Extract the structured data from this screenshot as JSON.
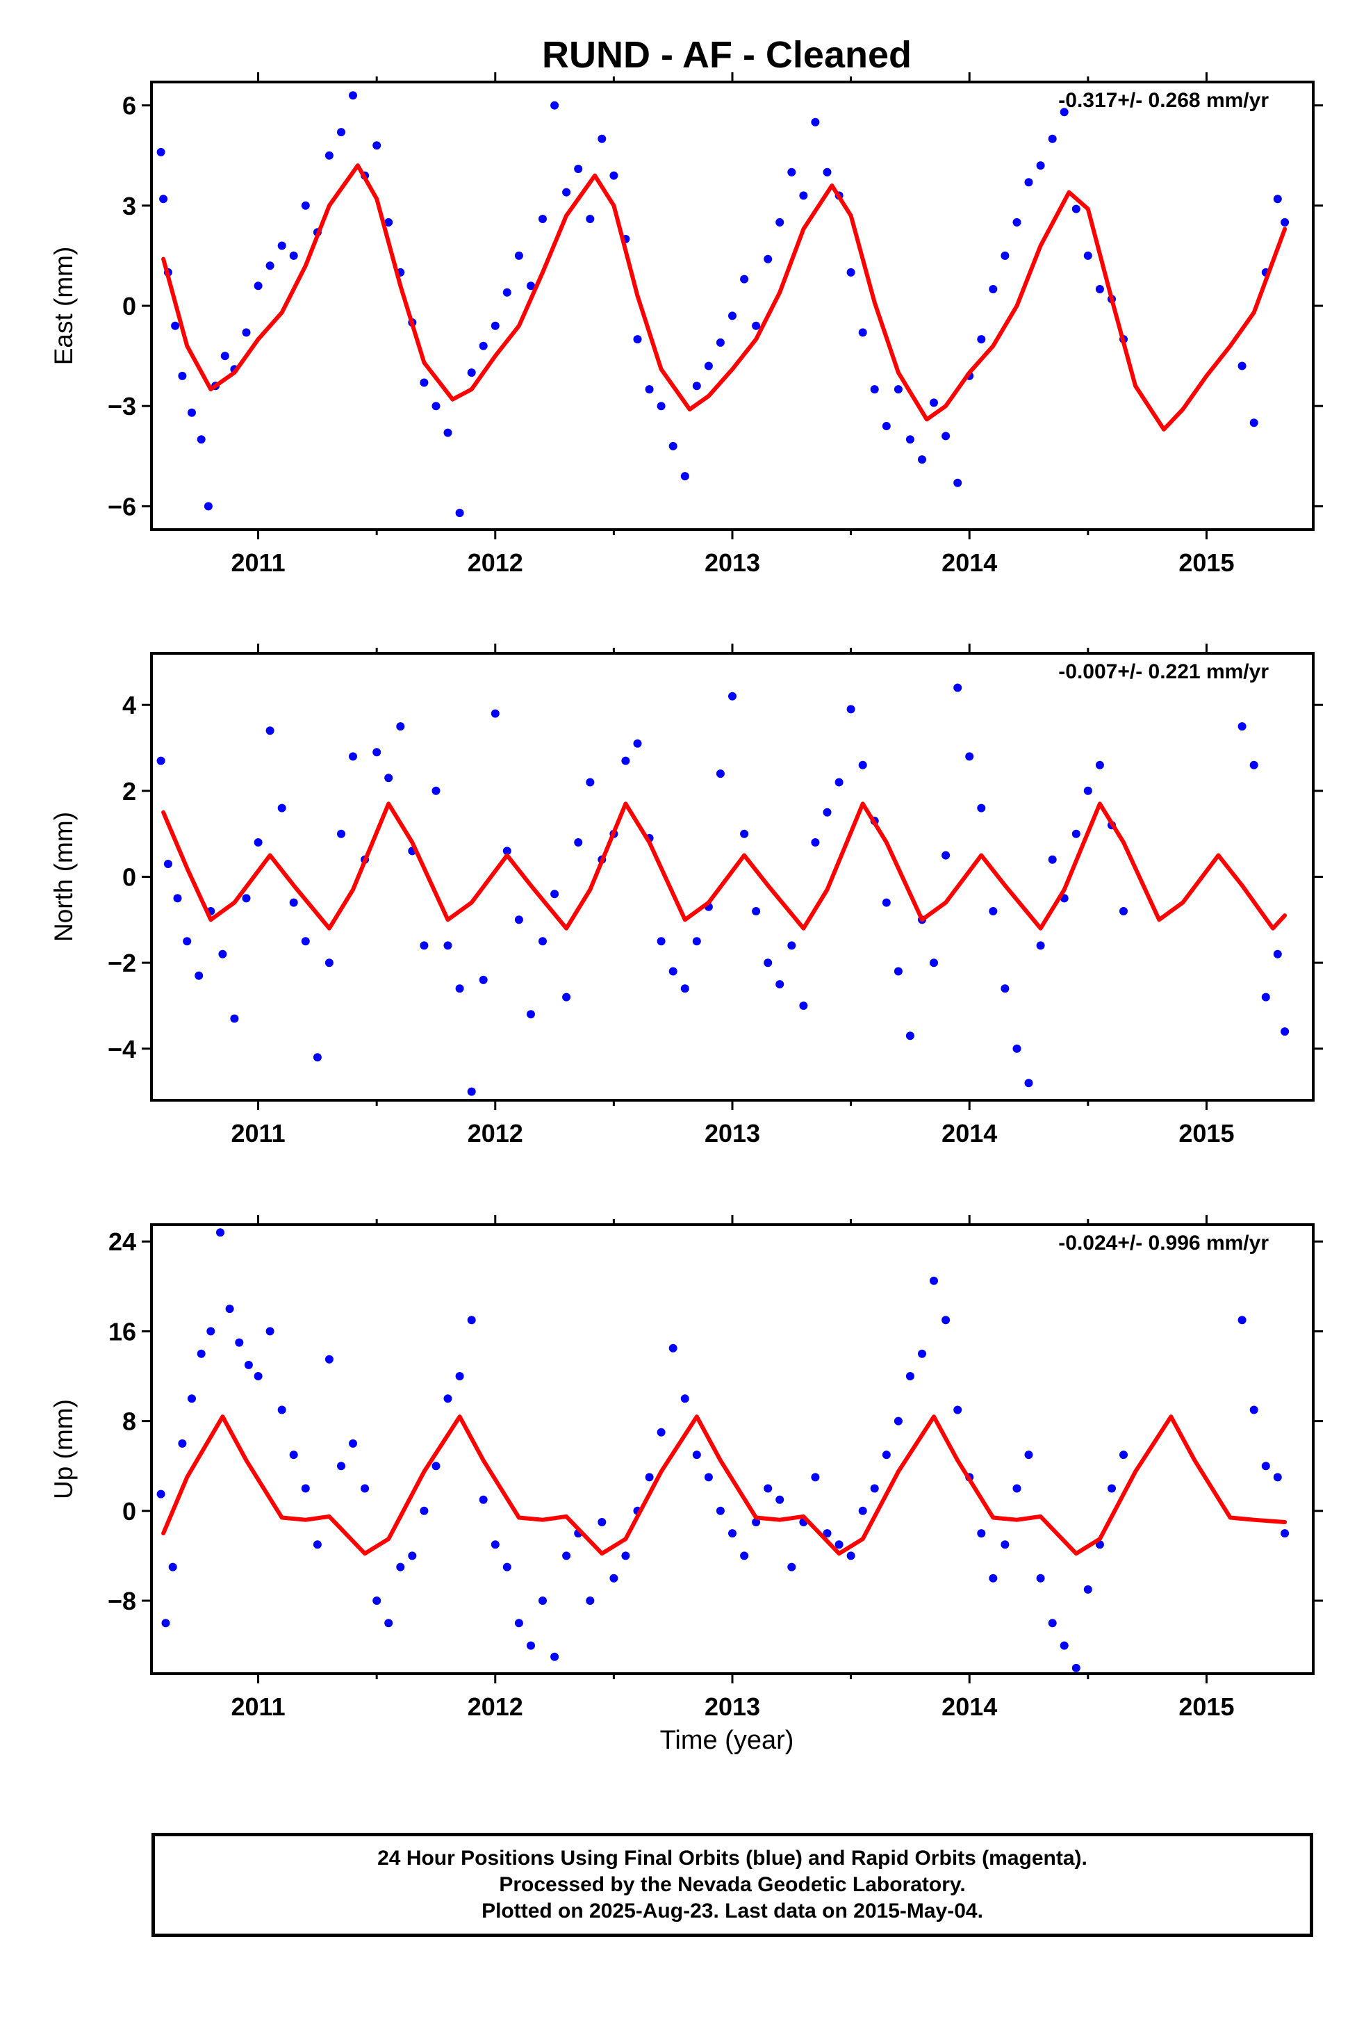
{
  "title": "RUND  - AF - Cleaned",
  "xlabel": "Time (year)",
  "colors": {
    "points": "#0000ff",
    "fit": "#ff0000",
    "frame": "#000000"
  },
  "footer": {
    "line1": "24 Hour Positions Using Final Orbits (blue) and Rapid Orbits (magenta).",
    "line2": "Processed by the Nevada Geodetic Laboratory.",
    "line3": "Plotted on 2025-Aug-23. Last data on 2015-May-04."
  },
  "chart_data": [
    {
      "type": "scatter",
      "ylabel": "East (mm)",
      "rate": "-0.317+/- 0.268 mm/yr",
      "xlim": [
        2010.55,
        2015.45
      ],
      "ylim": [
        -6.7,
        6.7
      ],
      "xticks": [
        2011,
        2012,
        2013,
        2014,
        2015
      ],
      "yticks": [
        -6,
        -3,
        0,
        3,
        6
      ],
      "fit_series": {
        "name": "fit",
        "x": [
          2010.6,
          2010.7,
          2010.8,
          2010.9,
          2011.0,
          2011.1,
          2011.2,
          2011.3,
          2011.42,
          2011.5,
          2011.6,
          2011.7,
          2011.82,
          2011.9,
          2012.0,
          2012.1,
          2012.2,
          2012.3,
          2012.42,
          2012.5,
          2012.6,
          2012.7,
          2012.82,
          2012.9,
          2013.0,
          2013.1,
          2013.2,
          2013.3,
          2013.42,
          2013.5,
          2013.6,
          2013.7,
          2013.82,
          2013.9,
          2014.0,
          2014.1,
          2014.2,
          2014.3,
          2014.42,
          2014.5,
          2014.6,
          2014.7,
          2014.82,
          2014.9,
          2015.0,
          2015.1,
          2015.2,
          2015.33
        ],
        "y": [
          1.4,
          -1.2,
          -2.5,
          -2.0,
          -1.0,
          -0.2,
          1.2,
          3.0,
          4.2,
          3.2,
          0.6,
          -1.7,
          -2.8,
          -2.5,
          -1.5,
          -0.6,
          1.0,
          2.7,
          3.9,
          3.0,
          0.3,
          -1.9,
          -3.1,
          -2.7,
          -1.9,
          -1.0,
          0.4,
          2.3,
          3.6,
          2.7,
          0.1,
          -2.0,
          -3.4,
          -3.0,
          -2.0,
          -1.2,
          0.0,
          1.8,
          3.4,
          2.9,
          0.2,
          -2.4,
          -3.7,
          -3.1,
          -2.1,
          -1.2,
          -0.2,
          2.3
        ]
      },
      "scatter_series": {
        "name": "daily",
        "x": [
          2010.59,
          2010.6,
          2010.62,
          2010.65,
          2010.68,
          2010.72,
          2010.76,
          2010.79,
          2010.82,
          2010.86,
          2010.9,
          2010.95,
          2011.0,
          2011.05,
          2011.1,
          2011.15,
          2011.2,
          2011.25,
          2011.3,
          2011.35,
          2011.4,
          2011.45,
          2011.5,
          2011.55,
          2011.6,
          2011.65,
          2011.7,
          2011.75,
          2011.8,
          2011.85,
          2011.9,
          2011.95,
          2012.0,
          2012.05,
          2012.1,
          2012.15,
          2012.2,
          2012.25,
          2012.3,
          2012.35,
          2012.4,
          2012.45,
          2012.5,
          2012.55,
          2012.6,
          2012.65,
          2012.7,
          2012.75,
          2012.8,
          2012.85,
          2012.9,
          2012.95,
          2013.0,
          2013.05,
          2013.1,
          2013.15,
          2013.2,
          2013.25,
          2013.3,
          2013.35,
          2013.4,
          2013.45,
          2013.5,
          2013.55,
          2013.6,
          2013.65,
          2013.7,
          2013.75,
          2013.8,
          2013.85,
          2013.9,
          2013.95,
          2014.0,
          2014.05,
          2014.1,
          2014.15,
          2014.2,
          2014.25,
          2014.3,
          2014.35,
          2014.4,
          2014.45,
          2014.5,
          2014.55,
          2014.6,
          2014.65,
          2015.15,
          2015.2,
          2015.25,
          2015.3,
          2015.33
        ],
        "y": [
          4.6,
          3.2,
          1.0,
          -0.6,
          -2.1,
          -3.2,
          -4.0,
          -6.0,
          -2.4,
          -1.5,
          -1.9,
          -0.8,
          0.6,
          1.2,
          1.8,
          1.5,
          3.0,
          2.2,
          4.5,
          5.2,
          6.3,
          3.9,
          4.8,
          2.5,
          1.0,
          -0.5,
          -2.3,
          -3.0,
          -3.8,
          -6.2,
          -2.0,
          -1.2,
          -0.6,
          0.4,
          1.5,
          0.6,
          2.6,
          6.0,
          3.4,
          4.1,
          2.6,
          5.0,
          3.9,
          2.0,
          -1.0,
          -2.5,
          -3.0,
          -4.2,
          -5.1,
          -2.4,
          -1.8,
          -1.1,
          -0.3,
          0.8,
          -0.6,
          1.4,
          2.5,
          4.0,
          3.3,
          5.5,
          4.0,
          3.3,
          1.0,
          -0.8,
          -2.5,
          -3.6,
          -2.5,
          -4.0,
          -4.6,
          -2.9,
          -3.9,
          -5.3,
          -2.1,
          -1.0,
          0.5,
          1.5,
          2.5,
          3.7,
          4.2,
          5.0,
          5.8,
          2.9,
          1.5,
          0.5,
          0.2,
          -1.0,
          -1.8,
          -3.5,
          1.0,
          3.2,
          2.5
        ]
      }
    },
    {
      "type": "scatter",
      "ylabel": "North (mm)",
      "rate": "-0.007+/- 0.221 mm/yr",
      "xlim": [
        2010.55,
        2015.45
      ],
      "ylim": [
        -5.2,
        5.2
      ],
      "xticks": [
        2011,
        2012,
        2013,
        2014,
        2015
      ],
      "yticks": [
        -4,
        -2,
        0,
        2,
        4
      ],
      "fit_series": {
        "name": "fit",
        "x": [
          2010.6,
          2010.7,
          2010.8,
          2010.9,
          2011.05,
          2011.15,
          2011.3,
          2011.4,
          2011.55,
          2011.65,
          2011.8,
          2011.9,
          2012.05,
          2012.15,
          2012.3,
          2012.4,
          2012.55,
          2012.65,
          2012.8,
          2012.9,
          2013.05,
          2013.15,
          2013.3,
          2013.4,
          2013.55,
          2013.65,
          2013.8,
          2013.9,
          2014.05,
          2014.15,
          2014.3,
          2014.4,
          2014.55,
          2014.65,
          2014.8,
          2014.9,
          2015.05,
          2015.15,
          2015.28,
          2015.33
        ],
        "y": [
          1.5,
          0.2,
          -1.0,
          -0.6,
          0.5,
          -0.2,
          -1.2,
          -0.3,
          1.7,
          0.8,
          -1.0,
          -0.6,
          0.5,
          -0.2,
          -1.2,
          -0.3,
          1.7,
          0.8,
          -1.0,
          -0.6,
          0.5,
          -0.2,
          -1.2,
          -0.3,
          1.7,
          0.8,
          -1.0,
          -0.6,
          0.5,
          -0.2,
          -1.2,
          -0.3,
          1.7,
          0.8,
          -1.0,
          -0.6,
          0.5,
          -0.2,
          -1.2,
          -0.9
        ]
      },
      "scatter_series": {
        "name": "daily",
        "x": [
          2010.59,
          2010.62,
          2010.66,
          2010.7,
          2010.75,
          2010.8,
          2010.85,
          2010.9,
          2010.95,
          2011.0,
          2011.05,
          2011.1,
          2011.15,
          2011.2,
          2011.25,
          2011.3,
          2011.35,
          2011.4,
          2011.45,
          2011.5,
          2011.55,
          2011.6,
          2011.65,
          2011.7,
          2011.75,
          2011.8,
          2011.85,
          2011.9,
          2011.95,
          2012.0,
          2012.05,
          2012.1,
          2012.15,
          2012.2,
          2012.25,
          2012.3,
          2012.35,
          2012.4,
          2012.45,
          2012.5,
          2012.55,
          2012.6,
          2012.65,
          2012.7,
          2012.75,
          2012.8,
          2012.85,
          2012.9,
          2012.95,
          2013.0,
          2013.05,
          2013.1,
          2013.15,
          2013.2,
          2013.25,
          2013.3,
          2013.35,
          2013.4,
          2013.45,
          2013.5,
          2013.55,
          2013.6,
          2013.65,
          2013.7,
          2013.75,
          2013.8,
          2013.85,
          2013.9,
          2013.95,
          2014.0,
          2014.05,
          2014.1,
          2014.15,
          2014.2,
          2014.25,
          2014.3,
          2014.35,
          2014.4,
          2014.45,
          2014.5,
          2014.55,
          2014.6,
          2014.65,
          2015.15,
          2015.2,
          2015.25,
          2015.3,
          2015.33
        ],
        "y": [
          2.7,
          0.3,
          -0.5,
          -1.5,
          -2.3,
          -0.8,
          -1.8,
          -3.3,
          -0.5,
          0.8,
          3.4,
          1.6,
          -0.6,
          -1.5,
          -4.2,
          -2.0,
          1.0,
          2.8,
          0.4,
          2.9,
          2.3,
          3.5,
          0.6,
          -1.6,
          2.0,
          -1.6,
          -2.6,
          -5.0,
          -2.4,
          3.8,
          0.6,
          -1.0,
          -3.2,
          -1.5,
          -0.4,
          -2.8,
          0.8,
          2.2,
          0.4,
          1.0,
          2.7,
          3.1,
          0.9,
          -1.5,
          -2.2,
          -2.6,
          -1.5,
          -0.7,
          2.4,
          4.2,
          1.0,
          -0.8,
          -2.0,
          -2.5,
          -1.6,
          -3.0,
          0.8,
          1.5,
          2.2,
          3.9,
          2.6,
          1.3,
          -0.6,
          -2.2,
          -3.7,
          -1.0,
          -2.0,
          0.5,
          4.4,
          2.8,
          1.6,
          -0.8,
          -2.6,
          -4.0,
          -4.8,
          -1.6,
          0.4,
          -0.5,
          1.0,
          2.0,
          2.6,
          1.2,
          -0.8,
          3.5,
          2.6,
          -2.8,
          -1.8,
          -3.6
        ]
      }
    },
    {
      "type": "scatter",
      "ylabel": "Up (mm)",
      "xlabel": "Time (year)",
      "rate": "-0.024+/- 0.996 mm/yr",
      "xlim": [
        2010.55,
        2015.45
      ],
      "ylim": [
        -14.5,
        25.5
      ],
      "xticks": [
        2011,
        2012,
        2013,
        2014,
        2015
      ],
      "yticks": [
        -8,
        0,
        8,
        16,
        24
      ],
      "fit_series": {
        "name": "fit",
        "x": [
          2010.6,
          2010.7,
          2010.85,
          2010.95,
          2011.1,
          2011.2,
          2011.3,
          2011.45,
          2011.55,
          2011.7,
          2011.85,
          2011.95,
          2012.1,
          2012.2,
          2012.3,
          2012.45,
          2012.55,
          2012.7,
          2012.85,
          2012.95,
          2013.1,
          2013.2,
          2013.3,
          2013.45,
          2013.55,
          2013.7,
          2013.85,
          2013.95,
          2014.1,
          2014.2,
          2014.3,
          2014.45,
          2014.55,
          2014.7,
          2014.85,
          2014.95,
          2015.1,
          2015.2,
          2015.33
        ],
        "y": [
          -2.0,
          3.0,
          8.4,
          4.5,
          -0.6,
          -0.8,
          -0.5,
          -3.8,
          -2.5,
          3.5,
          8.4,
          4.5,
          -0.6,
          -0.8,
          -0.5,
          -3.8,
          -2.5,
          3.5,
          8.4,
          4.5,
          -0.6,
          -0.8,
          -0.5,
          -3.8,
          -2.5,
          3.5,
          8.4,
          4.5,
          -0.6,
          -0.8,
          -0.5,
          -3.8,
          -2.5,
          3.5,
          8.4,
          4.5,
          -0.6,
          -0.8,
          -1.0
        ]
      },
      "scatter_series": {
        "name": "daily",
        "x": [
          2010.59,
          2010.61,
          2010.64,
          2010.68,
          2010.72,
          2010.76,
          2010.8,
          2010.84,
          2010.88,
          2010.92,
          2010.96,
          2011.0,
          2011.05,
          2011.1,
          2011.15,
          2011.2,
          2011.25,
          2011.3,
          2011.35,
          2011.4,
          2011.45,
          2011.5,
          2011.55,
          2011.6,
          2011.65,
          2011.7,
          2011.75,
          2011.8,
          2011.85,
          2011.9,
          2011.95,
          2012.0,
          2012.05,
          2012.1,
          2012.15,
          2012.2,
          2012.25,
          2012.3,
          2012.35,
          2012.4,
          2012.45,
          2012.5,
          2012.55,
          2012.6,
          2012.65,
          2012.7,
          2012.75,
          2012.8,
          2012.85,
          2012.9,
          2012.95,
          2013.0,
          2013.05,
          2013.1,
          2013.15,
          2013.2,
          2013.25,
          2013.3,
          2013.35,
          2013.4,
          2013.45,
          2013.5,
          2013.55,
          2013.6,
          2013.65,
          2013.7,
          2013.75,
          2013.8,
          2013.85,
          2013.9,
          2013.95,
          2014.0,
          2014.05,
          2014.1,
          2014.15,
          2014.2,
          2014.25,
          2014.3,
          2014.35,
          2014.4,
          2014.45,
          2014.5,
          2014.55,
          2014.6,
          2014.65,
          2015.15,
          2015.2,
          2015.25,
          2015.3,
          2015.33
        ],
        "y": [
          1.5,
          -10.0,
          -5.0,
          6.0,
          10.0,
          14.0,
          16.0,
          24.8,
          18.0,
          15.0,
          13.0,
          12.0,
          16.0,
          9.0,
          5.0,
          2.0,
          -3.0,
          13.5,
          4.0,
          6.0,
          2.0,
          -8.0,
          -10.0,
          -5.0,
          -4.0,
          0.0,
          4.0,
          10.0,
          12.0,
          17.0,
          1.0,
          -3.0,
          -5.0,
          -10.0,
          -12.0,
          -8.0,
          -13.0,
          -4.0,
          -2.0,
          -8.0,
          -1.0,
          -6.0,
          -4.0,
          0.0,
          3.0,
          7.0,
          14.5,
          10.0,
          5.0,
          3.0,
          0.0,
          -2.0,
          -4.0,
          -1.0,
          2.0,
          1.0,
          -5.0,
          -1.0,
          3.0,
          -2.0,
          -3.0,
          -4.0,
          0.0,
          2.0,
          5.0,
          8.0,
          12.0,
          14.0,
          20.5,
          17.0,
          9.0,
          3.0,
          -2.0,
          -6.0,
          -3.0,
          2.0,
          5.0,
          -6.0,
          -10.0,
          -12.0,
          -14.0,
          -7.0,
          -3.0,
          2.0,
          5.0,
          17.0,
          9.0,
          4.0,
          3.0,
          -2.0
        ]
      }
    }
  ]
}
